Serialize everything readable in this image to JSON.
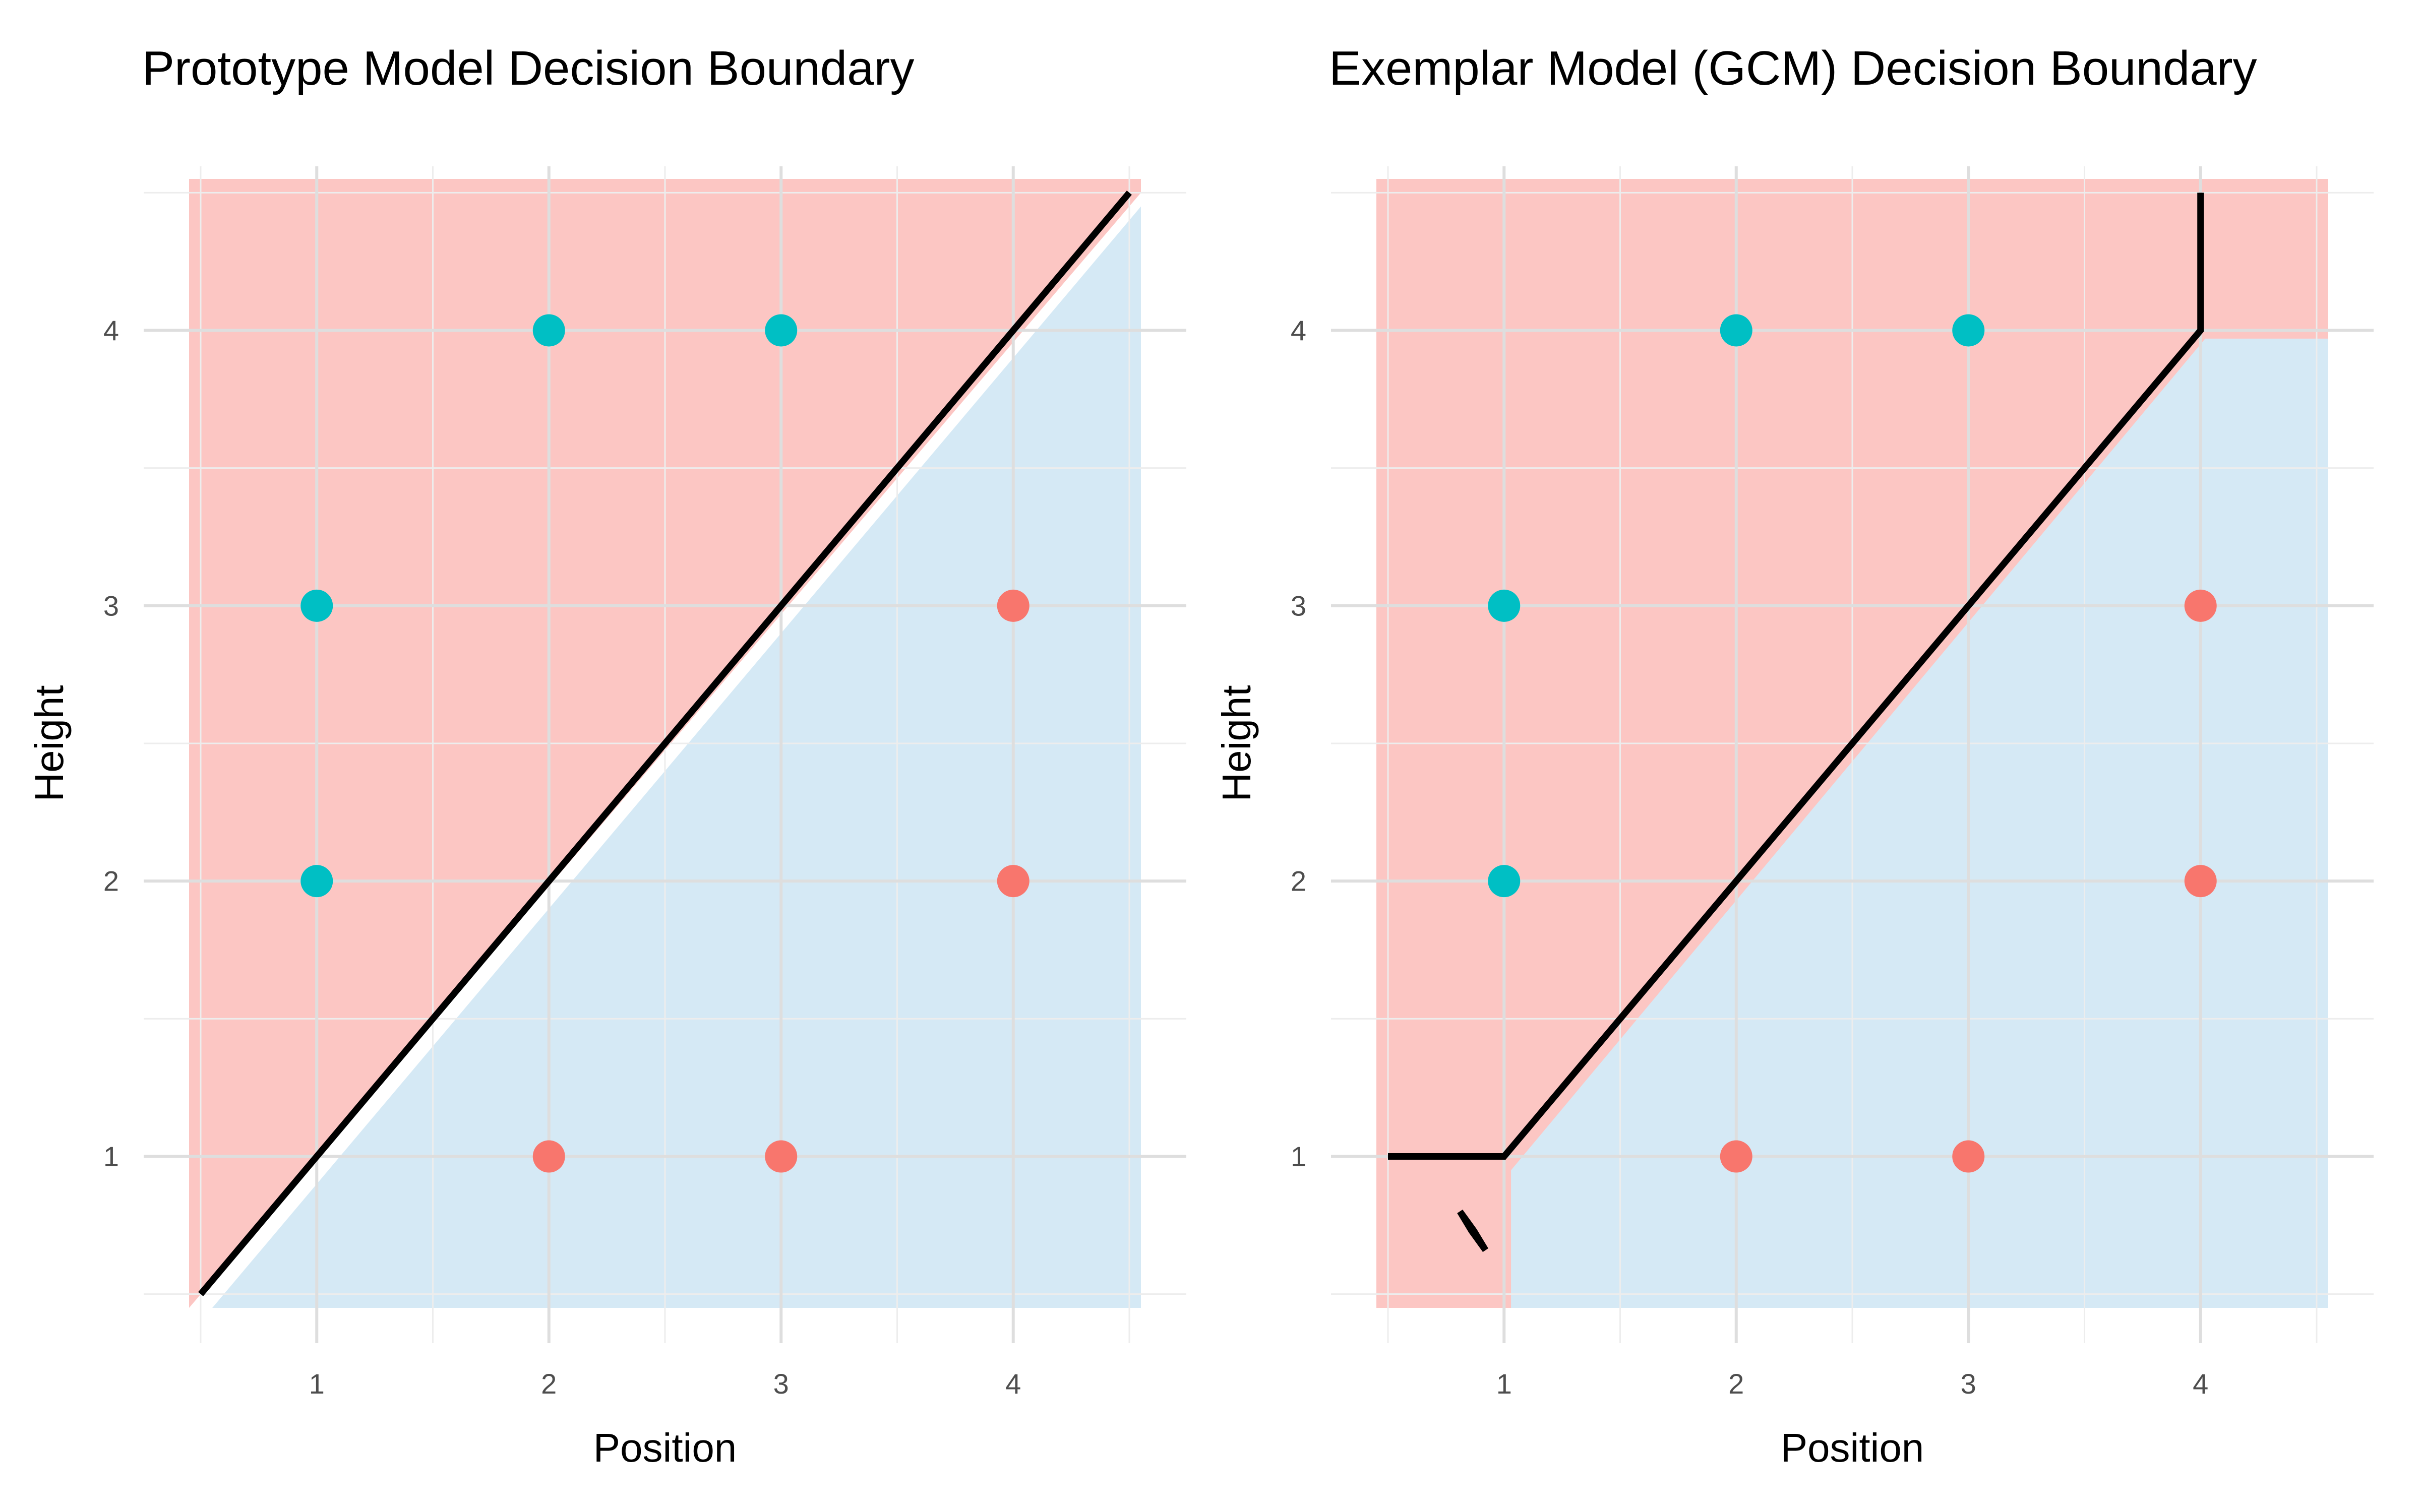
{
  "chart_data": [
    {
      "type": "scatter",
      "title": "Prototype Model Decision Boundary",
      "xlabel": "Position",
      "ylabel": "Height",
      "xlim": [
        0.45,
        4.55
      ],
      "ylim": [
        0.45,
        4.55
      ],
      "xticks": [
        "1",
        "2",
        "3",
        "4"
      ],
      "yticks": [
        "1",
        "2",
        "3",
        "4"
      ],
      "grid": true,
      "legend": "none",
      "colors": {
        "category_a": "#f8766d",
        "category_b": "#00bfc4",
        "region_a": "#fcc6c3",
        "region_b": "#d5e9f5",
        "boundary": "#000000"
      },
      "series": [
        {
          "category": "a",
          "x": [
            2,
            3,
            4,
            4
          ],
          "y": [
            1,
            1,
            2,
            3
          ]
        },
        {
          "category": "b",
          "x": [
            1,
            1,
            2,
            3
          ],
          "y": [
            2,
            3,
            4,
            4
          ]
        }
      ],
      "boundary": {
        "x": [
          0.5,
          4.5
        ],
        "y": [
          0.5,
          4.5
        ]
      },
      "region_a_polygon": {
        "x": [
          0.45,
          4.55,
          4.55,
          0.45
        ],
        "y": [
          4.55,
          4.55,
          4.5,
          0.45
        ]
      },
      "region_b_polygon": {
        "x": [
          0.5,
          4.55,
          4.55,
          0.55
        ],
        "y": [
          0.45,
          0.45,
          4.45,
          0.45
        ]
      }
    },
    {
      "type": "scatter",
      "title": "Exemplar Model (GCM) Decision Boundary",
      "xlabel": "Position",
      "ylabel": "Height",
      "xlim": [
        0.45,
        4.55
      ],
      "ylim": [
        0.45,
        4.55
      ],
      "xticks": [
        "1",
        "2",
        "3",
        "4"
      ],
      "yticks": [
        "1",
        "2",
        "3",
        "4"
      ],
      "grid": true,
      "legend": "none",
      "colors": {
        "category_a": "#f8766d",
        "category_b": "#00bfc4",
        "region_a": "#fcc6c3",
        "region_b": "#d5e9f5",
        "boundary": "#000000"
      },
      "series": [
        {
          "category": "a",
          "x": [
            2,
            3,
            4,
            4
          ],
          "y": [
            1,
            1,
            2,
            3
          ]
        },
        {
          "category": "b",
          "x": [
            1,
            1,
            2,
            3
          ],
          "y": [
            2,
            3,
            4,
            4
          ]
        }
      ],
      "boundary": {
        "x": [
          0.5,
          1,
          4,
          4
        ],
        "y": [
          1,
          1,
          4,
          4.5
        ]
      },
      "region_b_polygon": {
        "x": [
          1.03,
          4.55,
          4.55,
          4.02,
          1.03
        ],
        "y": [
          0.45,
          0.45,
          3.97,
          3.97,
          0.95
        ]
      },
      "diamond": {
        "x": [
          0.81,
          0.87,
          0.92,
          0.86
        ],
        "y": [
          0.8,
          0.73,
          0.66,
          0.73
        ]
      }
    }
  ]
}
